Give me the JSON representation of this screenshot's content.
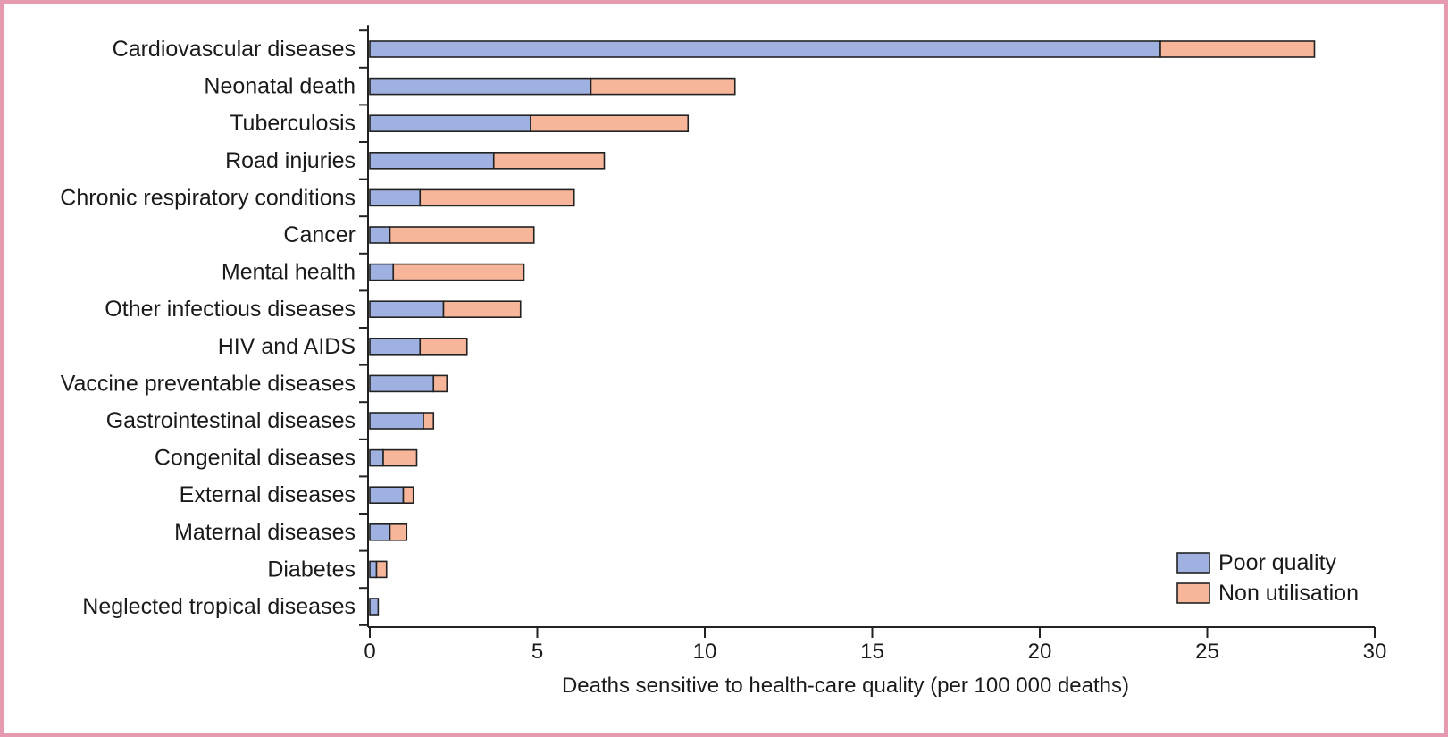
{
  "colors": {
    "poor_quality": "#9fb1e0",
    "non_utilisation": "#f7b59a",
    "stroke": "#222222",
    "frame": "#e59ab0"
  },
  "chart_data": {
    "type": "bar",
    "orientation": "horizontal",
    "stacked": true,
    "title": "",
    "xlabel": "Deaths sensitive to health-care quality (per 100 000 deaths)",
    "ylabel": "",
    "xlim": [
      0,
      30
    ],
    "xticks": [
      0,
      5,
      10,
      15,
      20,
      25,
      30
    ],
    "grid": false,
    "legend_position": "bottom-right",
    "categories": [
      "Cardiovascular diseases",
      "Neonatal death",
      "Tuberculosis",
      "Road injuries",
      "Chronic respiratory conditions",
      "Cancer",
      "Mental health",
      "Other infectious diseases",
      "HIV and AIDS",
      "Vaccine preventable diseases",
      "Gastrointestinal diseases",
      "Congenital diseases",
      "External diseases",
      "Maternal diseases",
      "Diabetes",
      "Neglected tropical diseases"
    ],
    "series": [
      {
        "name": "Poor quality",
        "color": "#9fb1e0",
        "values": [
          23.6,
          6.6,
          4.8,
          3.7,
          1.5,
          0.6,
          0.7,
          2.2,
          1.5,
          1.9,
          1.6,
          0.4,
          1.0,
          0.6,
          0.2,
          0.25
        ]
      },
      {
        "name": "Non utilisation",
        "color": "#f7b59a",
        "values": [
          4.6,
          4.3,
          4.7,
          3.3,
          4.6,
          4.3,
          3.9,
          2.3,
          1.4,
          0.4,
          0.3,
          1.0,
          0.3,
          0.5,
          0.3,
          0.0
        ]
      }
    ]
  }
}
